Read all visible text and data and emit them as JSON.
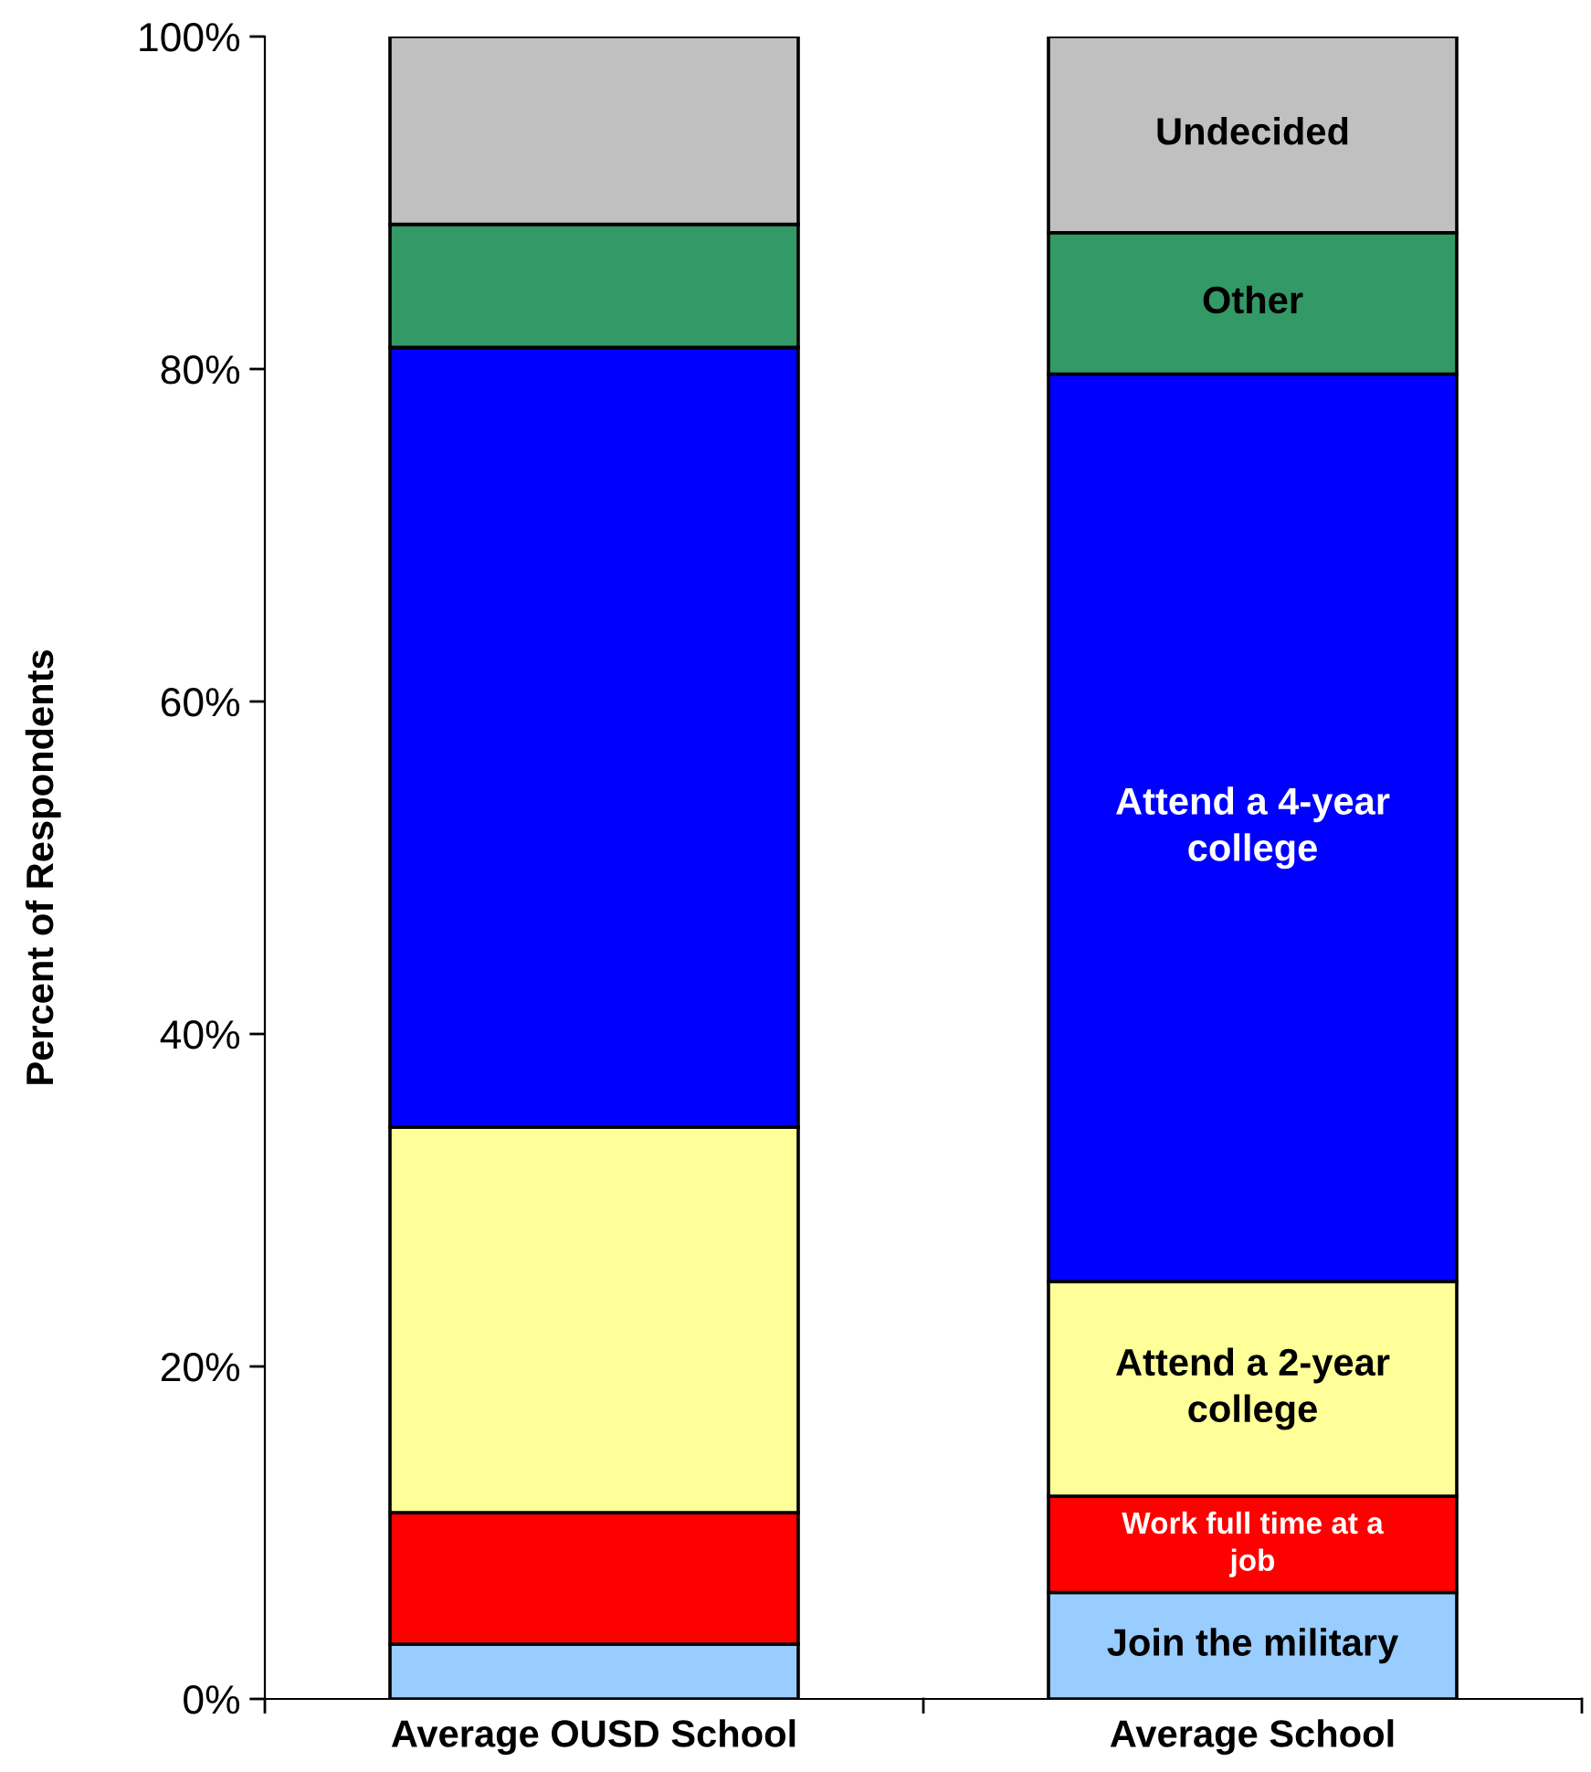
{
  "chart_data": {
    "type": "bar",
    "stacked": true,
    "ylabel": "Percent of Respondents",
    "categories": [
      "Average OUSD School",
      "Average School"
    ],
    "series": [
      {
        "name": "Join the military",
        "color": "#99ccff",
        "values": [
          3.3,
          6.4
        ]
      },
      {
        "name": "Work full time at a\njob",
        "color": "#ff0000",
        "values": [
          7.9,
          5.8
        ]
      },
      {
        "name": "Attend a 2-year\ncollege",
        "color": "#ffff99",
        "values": [
          23.2,
          12.9
        ]
      },
      {
        "name": "Attend a 4-year\ncollege",
        "color": "#0000ff",
        "values": [
          46.9,
          54.6
        ]
      },
      {
        "name": "Other",
        "color": "#339966",
        "values": [
          7.4,
          8.5
        ]
      },
      {
        "name": "Undecided",
        "color": "#c0c0c0",
        "values": [
          11.3,
          11.8
        ]
      }
    ],
    "ylim": [
      0,
      100
    ],
    "yticks": [
      {
        "value": 0,
        "label": "0%"
      },
      {
        "value": 20,
        "label": "20%"
      },
      {
        "value": 40,
        "label": "40%"
      },
      {
        "value": 60,
        "label": "60%"
      },
      {
        "value": 80,
        "label": "80%"
      },
      {
        "value": 100,
        "label": "100%"
      }
    ],
    "grid": false,
    "legend": false
  }
}
